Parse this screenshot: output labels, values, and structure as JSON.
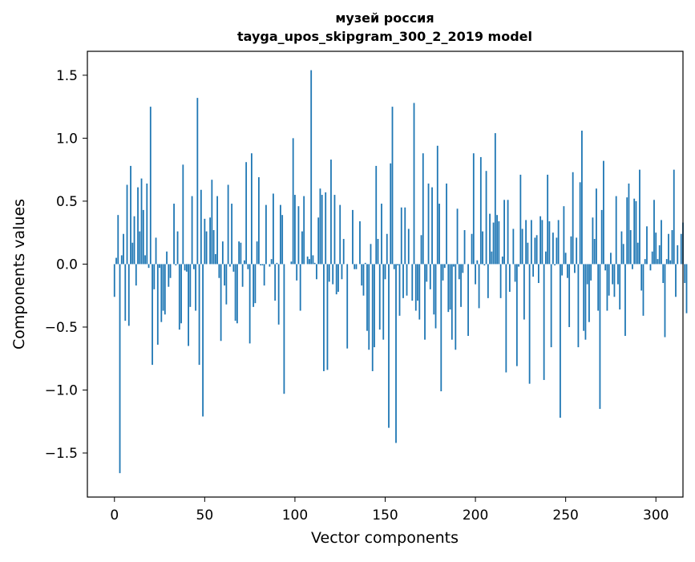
{
  "chart_data": {
    "type": "bar",
    "title_line1": "музей россия",
    "title_line2": "tayga_upos_skipgram_300_2_2019 model",
    "xlabel": "Vector components",
    "ylabel": "Components values",
    "xlim": [
      -15,
      315
    ],
    "ylim": [
      -1.85,
      1.69
    ],
    "xticks": [
      0,
      50,
      100,
      150,
      200,
      250,
      300
    ],
    "yticks": [
      -1.5,
      -1.0,
      -0.5,
      0.0,
      0.5,
      1.0,
      1.5
    ],
    "ytick_labels": [
      "−1.5",
      "−1.0",
      "−0.5",
      "0.0",
      "0.5",
      "1.0",
      "1.5"
    ],
    "grid": false,
    "bar_color": "#1f77b4",
    "values": [
      -0.26,
      0.05,
      0.39,
      -1.66,
      0.07,
      0.24,
      -0.45,
      0.63,
      -0.49,
      0.78,
      0.17,
      0.38,
      -0.17,
      0.61,
      0.26,
      0.68,
      0.43,
      0.07,
      0.64,
      -0.03,
      1.25,
      -0.8,
      -0.2,
      0.21,
      -0.64,
      -0.03,
      -0.46,
      -0.37,
      -0.4,
      0.1,
      -0.18,
      -0.11,
      0.0,
      0.48,
      -0.01,
      0.26,
      -0.52,
      -0.47,
      0.79,
      -0.05,
      -0.06,
      -0.65,
      -0.34,
      0.54,
      -0.04,
      -0.37,
      1.32,
      -0.8,
      0.59,
      -1.21,
      0.36,
      0.26,
      0.0,
      0.37,
      0.67,
      0.27,
      0.08,
      0.54,
      -0.11,
      -0.61,
      0.18,
      -0.17,
      -0.32,
      0.63,
      -0.02,
      0.48,
      -0.06,
      -0.45,
      -0.47,
      0.18,
      0.17,
      -0.18,
      0.03,
      0.81,
      -0.04,
      -0.63,
      0.88,
      -0.34,
      -0.31,
      0.18,
      0.69,
      -0.01,
      -0.01,
      -0.17,
      0.47,
      0.0,
      -0.02,
      0.04,
      0.56,
      -0.29,
      0.01,
      -0.48,
      0.47,
      0.39,
      -1.03,
      0.0,
      0.0,
      0.0,
      0.02,
      1.0,
      0.55,
      -0.13,
      0.46,
      -0.37,
      0.26,
      0.54,
      0.0,
      0.06,
      0.04,
      1.54,
      0.07,
      0.01,
      -0.12,
      0.37,
      0.6,
      0.55,
      -0.85,
      0.57,
      -0.84,
      -0.14,
      0.83,
      -0.16,
      0.55,
      -0.24,
      -0.22,
      0.47,
      -0.12,
      0.2,
      0.0,
      -0.67,
      0.0,
      0.0,
      0.43,
      -0.04,
      -0.04,
      0.0,
      0.34,
      -0.17,
      -0.25,
      0.01,
      -0.53,
      -0.68,
      0.16,
      -0.85,
      -0.66,
      0.78,
      0.2,
      -0.52,
      0.48,
      -0.6,
      -0.12,
      0.24,
      -1.3,
      0.8,
      1.25,
      -0.04,
      -1.42,
      -0.01,
      -0.41,
      0.45,
      -0.27,
      0.45,
      -0.25,
      0.28,
      0.0,
      -0.29,
      1.28,
      -0.37,
      -0.29,
      -0.44,
      0.23,
      0.88,
      -0.6,
      -0.14,
      0.64,
      -0.2,
      0.61,
      -0.4,
      -0.51,
      0.94,
      0.48,
      -1.01,
      -0.13,
      -0.03,
      0.64,
      -0.38,
      -0.36,
      -0.6,
      -0.02,
      -0.68,
      0.44,
      -0.12,
      -0.34,
      -0.07,
      0.27,
      0.0,
      -0.57,
      0.0,
      0.24,
      0.88,
      -0.16,
      0.03,
      -0.35,
      0.85,
      0.26,
      -0.01,
      0.74,
      -0.27,
      0.4,
      0.1,
      0.33,
      1.04,
      0.39,
      0.34,
      -0.27,
      0.06,
      0.51,
      -0.86,
      0.51,
      -0.22,
      0.0,
      0.28,
      -0.14,
      -0.81,
      -0.02,
      0.71,
      0.28,
      -0.44,
      0.35,
      0.17,
      -0.95,
      0.35,
      -0.1,
      0.21,
      0.23,
      -0.15,
      0.38,
      0.35,
      -0.92,
      0.1,
      0.71,
      0.34,
      -0.66,
      0.25,
      -0.01,
      0.21,
      0.35,
      -1.22,
      -0.09,
      0.46,
      0.09,
      -0.11,
      -0.5,
      0.22,
      0.73,
      -0.07,
      0.21,
      -0.66,
      0.65,
      1.06,
      -0.53,
      -0.6,
      -0.16,
      -0.46,
      -0.13,
      0.37,
      0.2,
      0.6,
      -0.37,
      -1.15,
      0.43,
      0.82,
      -0.05,
      -0.37,
      -0.25,
      0.09,
      -0.16,
      -0.26,
      0.54,
      -0.16,
      -0.36,
      0.26,
      0.16,
      -0.57,
      0.53,
      0.64,
      0.27,
      -0.04,
      0.52,
      0.5,
      0.17,
      0.75,
      -0.21,
      -0.41,
      0.04,
      0.3,
      0.0,
      -0.05,
      0.1,
      0.51,
      0.25,
      0.04,
      0.15,
      0.35,
      -0.15,
      -0.58,
      0.04,
      0.24,
      0.03,
      0.27,
      0.75,
      -0.26,
      0.15,
      0.0,
      0.24,
      0.33,
      -0.15,
      -0.39
    ]
  }
}
